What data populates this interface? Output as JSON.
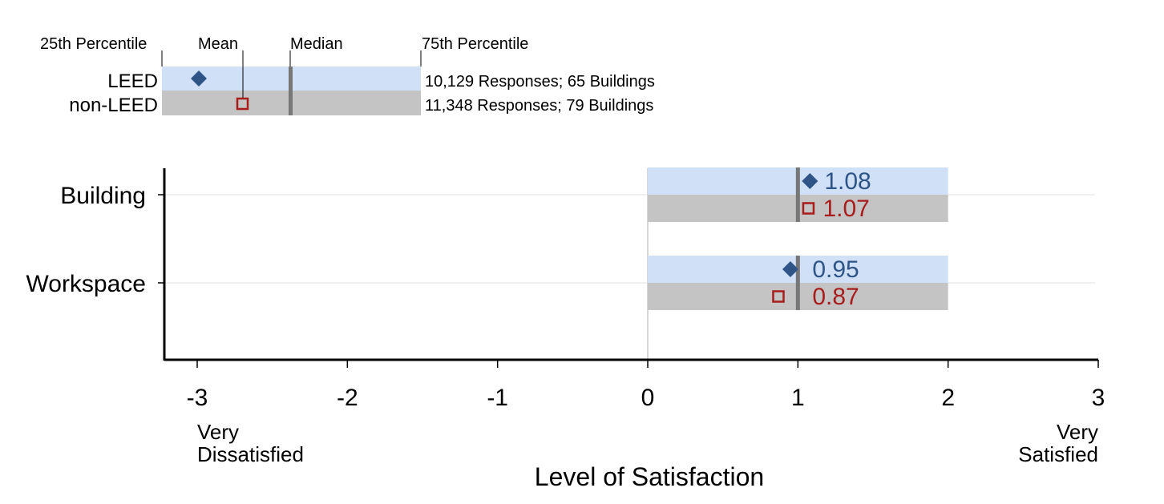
{
  "colors": {
    "leed_box": "#cfe0f7",
    "nonleed_box": "#c4c4c4",
    "leed_marker": "#2f5486",
    "nonleed_marker": "#a81c1c",
    "median_line": "#777777",
    "axis": "#000000",
    "gridline": "#e2e2e2"
  },
  "legend": {
    "labels": {
      "p25": "25th Percentile",
      "mean": "Mean",
      "median": "Median",
      "p75": "75th Percentile"
    },
    "rows": [
      {
        "name": "LEED",
        "marker": "diamond",
        "note": "10,129 Responses; 65 Buildings"
      },
      {
        "name": "non-LEED",
        "marker": "square",
        "note": "11,348 Responses; 79 Buildings"
      }
    ]
  },
  "chart_data": {
    "type": "box",
    "orientation": "horizontal",
    "categories": [
      "Building",
      "Workspace"
    ],
    "series": [
      {
        "name": "LEED",
        "marker": "diamond",
        "p25": [
          0,
          0
        ],
        "median": [
          1,
          1
        ],
        "p75": [
          2,
          2
        ],
        "mean": [
          1.08,
          0.95
        ],
        "mean_labels": [
          "1.08",
          "0.95"
        ]
      },
      {
        "name": "non-LEED",
        "marker": "square",
        "p25": [
          0,
          0
        ],
        "median": [
          1,
          1
        ],
        "p75": [
          2,
          2
        ],
        "mean": [
          1.07,
          0.87
        ],
        "mean_labels": [
          "1.07",
          "0.87"
        ]
      }
    ],
    "xlabel": "Level of Satisfaction",
    "xlim": [
      -3,
      3
    ],
    "xticks": [
      -3,
      -2,
      -1,
      0,
      1,
      2,
      3
    ],
    "xtick_labels": [
      "-3",
      "-2",
      "-1",
      "0",
      "1",
      "2",
      "3"
    ],
    "scale_anchors": {
      "low": [
        "Very",
        "Dissatisfied"
      ],
      "high": [
        "Very",
        "Satisfied"
      ]
    },
    "horizontal_grid": true
  }
}
